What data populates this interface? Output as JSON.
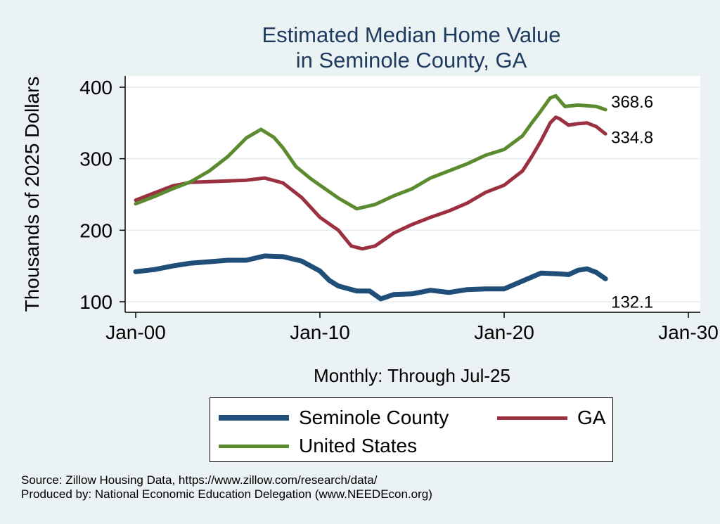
{
  "title_line1": "Estimated Median Home Value",
  "title_line2": "in Seminole County, GA",
  "chart_data": {
    "type": "line",
    "title": "Estimated Median Home Value in Seminole County, GA",
    "ylabel": "Thousands of 2025 Dollars",
    "xlabel": "Monthly: Through Jul-25",
    "xlim": [
      2000,
      2030
    ],
    "ylim": [
      100,
      400
    ],
    "x_ticks": [
      {
        "value": 2000,
        "label": "Jan-00"
      },
      {
        "value": 2010,
        "label": "Jan-10"
      },
      {
        "value": 2020,
        "label": "Jan-20"
      },
      {
        "value": 2030,
        "label": "Jan-30"
      }
    ],
    "y_ticks": [
      100,
      200,
      300,
      400
    ],
    "grid": true,
    "series": [
      {
        "name": "Seminole County",
        "color": "#1f4e79",
        "width": 7,
        "end_label": "132.1",
        "points": [
          [
            2000,
            142
          ],
          [
            2001,
            145
          ],
          [
            2002,
            150
          ],
          [
            2003,
            154
          ],
          [
            2004,
            156
          ],
          [
            2005,
            158
          ],
          [
            2006,
            158
          ],
          [
            2007,
            164
          ],
          [
            2008,
            163
          ],
          [
            2009,
            157
          ],
          [
            2010,
            143
          ],
          [
            2010.5,
            130
          ],
          [
            2011,
            122
          ],
          [
            2012,
            115
          ],
          [
            2012.7,
            115
          ],
          [
            2013.3,
            104
          ],
          [
            2014,
            110
          ],
          [
            2015,
            111
          ],
          [
            2016,
            116
          ],
          [
            2017,
            113
          ],
          [
            2018,
            117
          ],
          [
            2019,
            118
          ],
          [
            2020,
            118
          ],
          [
            2021,
            129
          ],
          [
            2022,
            140
          ],
          [
            2023,
            139
          ],
          [
            2023.5,
            138
          ],
          [
            2024,
            144
          ],
          [
            2024.5,
            146
          ],
          [
            2025,
            141
          ],
          [
            2025.5,
            132.1
          ]
        ]
      },
      {
        "name": "GA",
        "color": "#9b3040",
        "width": 5,
        "end_label": "334.8",
        "points": [
          [
            2000,
            242
          ],
          [
            2001,
            252
          ],
          [
            2002,
            262
          ],
          [
            2003,
            267
          ],
          [
            2004,
            268
          ],
          [
            2005,
            269
          ],
          [
            2006,
            270
          ],
          [
            2007,
            273
          ],
          [
            2008,
            266
          ],
          [
            2009,
            246
          ],
          [
            2010,
            218
          ],
          [
            2011,
            200
          ],
          [
            2011.7,
            178
          ],
          [
            2012.3,
            174
          ],
          [
            2013,
            178
          ],
          [
            2014,
            196
          ],
          [
            2015,
            208
          ],
          [
            2016,
            218
          ],
          [
            2017,
            227
          ],
          [
            2018,
            238
          ],
          [
            2019,
            253
          ],
          [
            2020,
            263
          ],
          [
            2021,
            283
          ],
          [
            2021.5,
            303
          ],
          [
            2022,
            325
          ],
          [
            2022.5,
            350
          ],
          [
            2022.8,
            358
          ],
          [
            2023,
            356
          ],
          [
            2023.5,
            347
          ],
          [
            2024,
            349
          ],
          [
            2024.5,
            350
          ],
          [
            2025,
            345
          ],
          [
            2025.5,
            334.8
          ]
        ]
      },
      {
        "name": "United States",
        "color": "#5b8a2f",
        "width": 5,
        "end_label": "368.6",
        "points": [
          [
            2000,
            237
          ],
          [
            2001,
            247
          ],
          [
            2002,
            258
          ],
          [
            2003,
            268
          ],
          [
            2004,
            283
          ],
          [
            2005,
            303
          ],
          [
            2006,
            329
          ],
          [
            2006.8,
            341
          ],
          [
            2007.5,
            330
          ],
          [
            2008,
            315
          ],
          [
            2008.7,
            289
          ],
          [
            2009.5,
            272
          ],
          [
            2010,
            263
          ],
          [
            2011,
            245
          ],
          [
            2012,
            230
          ],
          [
            2013,
            236
          ],
          [
            2014,
            248
          ],
          [
            2015,
            258
          ],
          [
            2016,
            273
          ],
          [
            2017,
            283
          ],
          [
            2018,
            293
          ],
          [
            2019,
            305
          ],
          [
            2020,
            313
          ],
          [
            2021,
            332
          ],
          [
            2021.5,
            350
          ],
          [
            2022,
            367
          ],
          [
            2022.5,
            385
          ],
          [
            2022.8,
            388
          ],
          [
            2023.3,
            373
          ],
          [
            2024,
            375
          ],
          [
            2024.5,
            374
          ],
          [
            2025,
            373
          ],
          [
            2025.5,
            368.6
          ]
        ]
      }
    ],
    "legend": {
      "placement": "bottom",
      "entries": [
        "Seminole County",
        "GA",
        "United States"
      ]
    }
  },
  "source_line1": "Source: Zillow Housing Data, https://www.zillow.com/research/data/",
  "source_line2": "Produced by: National Economic Education Delegation (www.NEEDEcon.org)"
}
